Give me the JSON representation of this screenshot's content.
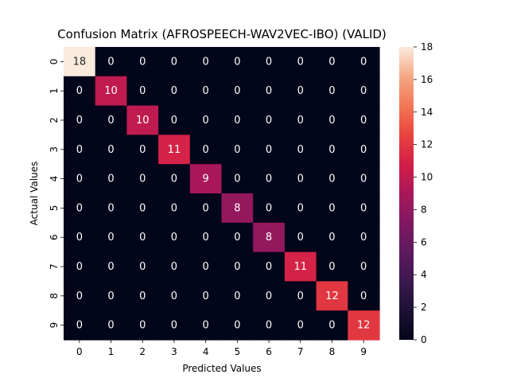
{
  "chart_data": {
    "type": "heatmap",
    "title": "Confusion Matrix (AFROSPEECH-WAV2VEC-IBO) (VALID)",
    "xlabel": "Predicted Values",
    "ylabel": "Actual Values",
    "x_categories": [
      "0",
      "1",
      "2",
      "3",
      "4",
      "5",
      "6",
      "7",
      "8",
      "9"
    ],
    "y_categories": [
      "0",
      "1",
      "2",
      "3",
      "4",
      "5",
      "6",
      "7",
      "8",
      "9"
    ],
    "values": [
      [
        18,
        0,
        0,
        0,
        0,
        0,
        0,
        0,
        0,
        0
      ],
      [
        0,
        10,
        0,
        0,
        0,
        0,
        0,
        0,
        0,
        0
      ],
      [
        0,
        0,
        10,
        0,
        0,
        0,
        0,
        0,
        0,
        0
      ],
      [
        0,
        0,
        0,
        11,
        0,
        0,
        0,
        0,
        0,
        0
      ],
      [
        0,
        0,
        0,
        0,
        9,
        0,
        0,
        0,
        0,
        0
      ],
      [
        0,
        0,
        0,
        0,
        0,
        8,
        0,
        0,
        0,
        0
      ],
      [
        0,
        0,
        0,
        0,
        0,
        0,
        8,
        0,
        0,
        0
      ],
      [
        0,
        0,
        0,
        0,
        0,
        0,
        0,
        11,
        0,
        0
      ],
      [
        0,
        0,
        0,
        0,
        0,
        0,
        0,
        0,
        12,
        0
      ],
      [
        0,
        0,
        0,
        0,
        0,
        0,
        0,
        0,
        0,
        12
      ]
    ],
    "colorbar": {
      "range": [
        0,
        18
      ],
      "ticks": [
        "0",
        "2",
        "4",
        "6",
        "8",
        "10",
        "12",
        "14",
        "16",
        "18"
      ]
    },
    "colormap": "rocket"
  }
}
